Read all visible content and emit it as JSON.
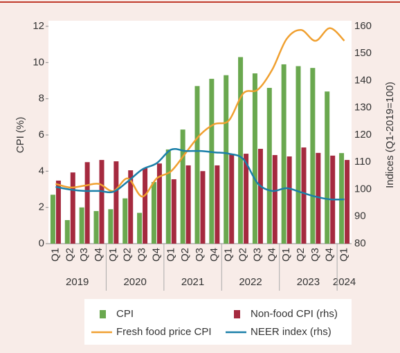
{
  "chart_data": {
    "type": "bar-line",
    "ylabel": "CPI (%)",
    "y2label": "Indices (Q1-2019=100)",
    "categories": [
      "Q1",
      "Q2",
      "Q3",
      "Q4",
      "Q1",
      "Q2",
      "Q3",
      "Q4",
      "Q1",
      "Q2",
      "Q3",
      "Q4",
      "Q1",
      "Q2",
      "Q3",
      "Q4",
      "Q1",
      "Q2",
      "Q3",
      "Q4",
      "Q1"
    ],
    "years": [
      "2019",
      "2020",
      "2021",
      "2022",
      "2023",
      "2024"
    ],
    "ylim": [
      0,
      12
    ],
    "yticks": [
      0,
      2,
      4,
      6,
      8,
      10,
      12
    ],
    "y2lim": [
      80,
      160
    ],
    "y2ticks": [
      80,
      90,
      100,
      110,
      120,
      130,
      140,
      150,
      160
    ],
    "series": [
      {
        "name": "CPI",
        "type": "bar",
        "color": "#6aa84f",
        "values": [
          2.7,
          1.3,
          2.0,
          1.8,
          1.9,
          2.5,
          1.7,
          3.4,
          5.2,
          6.3,
          8.7,
          9.1,
          9.3,
          10.3,
          9.4,
          8.6,
          9.9,
          9.8,
          9.7,
          8.4,
          5.0
        ]
      },
      {
        "name": "Non-food CPI (rhs)",
        "type": "bar",
        "axis": "y2",
        "color": "#a52a3f",
        "values": [
          103.2,
          106.2,
          110.0,
          110.8,
          110.3,
          107.0,
          107.8,
          109.5,
          103.7,
          108.8,
          106.7,
          108.8,
          113.1,
          113.1,
          114.9,
          112.6,
          112.1,
          115.4,
          113.4,
          112.4,
          110.8
        ]
      },
      {
        "name": "Fresh food price CPI",
        "type": "line",
        "color": "#f0a030",
        "values": [
          3.3,
          3.1,
          3.2,
          3.3,
          2.9,
          3.6,
          2.6,
          3.6,
          4.0,
          5.0,
          6.0,
          6.6,
          6.8,
          8.3,
          8.5,
          9.6,
          11.3,
          11.8,
          11.2,
          11.9,
          11.2
        ]
      },
      {
        "name": "NEER index (rhs)",
        "type": "line",
        "axis": "y2",
        "color": "#1a7fa8",
        "values": [
          100.9,
          99.9,
          99.4,
          99.4,
          99.1,
          102.9,
          107.3,
          109.6,
          114.6,
          114.1,
          114.1,
          113.6,
          113.1,
          111.1,
          102.2,
          99.4,
          100.4,
          98.9,
          97.3,
          96.3,
          96.3
        ]
      }
    ]
  }
}
